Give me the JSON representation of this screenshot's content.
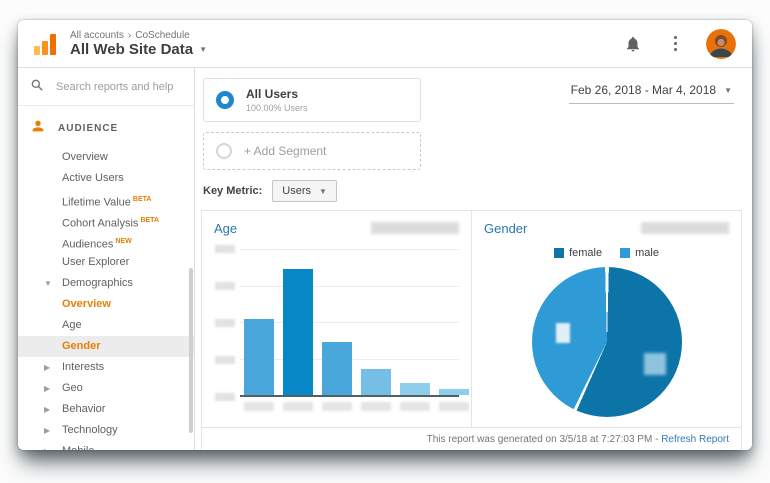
{
  "app": {
    "breadcrumb": {
      "root": "All accounts",
      "separator": "›",
      "account": "CoSchedule"
    },
    "title": "All Web Site Data"
  },
  "sidebar": {
    "search_placeholder": "Search reports and help",
    "section_label": "AUDIENCE",
    "items": [
      {
        "label": "Overview"
      },
      {
        "label": "Active Users"
      },
      {
        "label": "Lifetime Value",
        "badge": "BETA"
      },
      {
        "label": "Cohort Analysis",
        "badge": "BETA"
      },
      {
        "label": "Audiences",
        "badge": "NEW"
      },
      {
        "label": "User Explorer"
      },
      {
        "label": "Demographics",
        "arrow": "down"
      },
      {
        "label": "Overview",
        "active": true
      },
      {
        "label": "Age"
      },
      {
        "label": "Gender",
        "active": true,
        "selected": true
      },
      {
        "label": "Interests",
        "arrow": "right"
      },
      {
        "label": "Geo",
        "arrow": "right"
      },
      {
        "label": "Behavior",
        "arrow": "right"
      },
      {
        "label": "Technology",
        "arrow": "right"
      },
      {
        "label": "Mobile",
        "arrow": "right"
      }
    ]
  },
  "segments": {
    "all_users_title": "All Users",
    "all_users_subtitle": "100.00% Users",
    "add_segment_label": "+ Add Segment"
  },
  "date_range": "Feb 26, 2018 - Mar 4, 2018",
  "key_metric": {
    "label": "Key Metric:",
    "value": "Users"
  },
  "panels": {
    "age_title": "Age",
    "gender_title": "Gender"
  },
  "footer": {
    "generated_text": "This report was generated on 3/5/18 at 7:27:03 PM - ",
    "refresh_link": "Refresh Report"
  },
  "colors": {
    "accent_orange": "#E87E04",
    "link_blue": "#2779AD",
    "segment_donut_blue": "#1E88CE"
  },
  "chart_data": [
    {
      "type": "bar",
      "title": "Age",
      "categories": [
        "redacted",
        "redacted",
        "redacted",
        "redacted",
        "redacted",
        "redacted"
      ],
      "values": [
        52,
        86,
        36,
        18,
        8,
        4
      ],
      "values_note": "relative bar heights in % of plot height; axis tick and category labels are blurred out in the source screenshot",
      "bar_colors": [
        "#49A7DB",
        "#0887C7",
        "#49A7DB",
        "#76BEE6",
        "#8ECDEC",
        "#8ECDEC"
      ],
      "grid": true,
      "legend_position": "none"
    },
    {
      "type": "pie",
      "title": "Gender",
      "labels": [
        "female",
        "male"
      ],
      "values": [
        57,
        43
      ],
      "values_note": "estimated slice percentages; numeric labels on slices are blurred out in the source screenshot",
      "colors": [
        "#0D74A8",
        "#2E9BD6"
      ],
      "legend_position": "top"
    }
  ]
}
